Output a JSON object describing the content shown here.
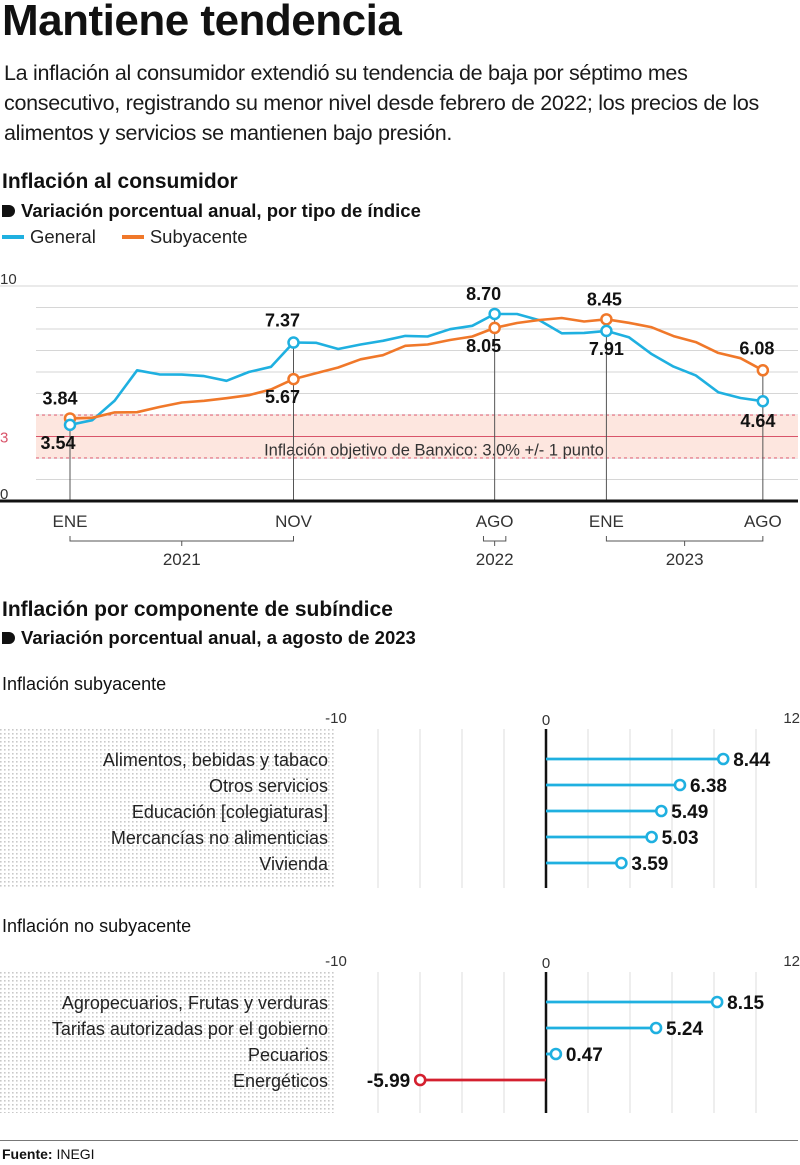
{
  "header": {
    "title": "Mantiene tendencia",
    "intro": "La inflación al consumidor extendió su tendencia de baja por séptimo mes consecutivo, registrando su menor nivel desde febrero de 2022; los precios de los alimentos y servicios se mantienen bajo presión."
  },
  "section1": {
    "title": "Inflación al consumidor",
    "subtitle": "Variación porcentual anual, por tipo de índice"
  },
  "section2": {
    "title": "Inflación por componente de subíndice",
    "subtitle": "Variación porcentual anual, a agosto de 2023"
  },
  "colors": {
    "general": "#1fb0e0",
    "subyacente": "#f0782a",
    "negative": "#d4202f",
    "band": "#fde6df",
    "band_line": "#d9546a"
  },
  "footer": {
    "source_label": "Fuente:",
    "source_value": "INEGI"
  },
  "chart_data": [
    {
      "type": "line",
      "title": "Inflación al consumidor",
      "subtitle": "Variación porcentual anual, por tipo de índice",
      "xlabel": "",
      "ylabel": "",
      "ylim": [
        0,
        10
      ],
      "yticks": [
        "0",
        "3",
        "10"
      ],
      "grid": true,
      "legend": "top-left",
      "x": [
        "ENE 2021",
        "FEB 2021",
        "MAR 2021",
        "ABR 2021",
        "MAY 2021",
        "JUN 2021",
        "JUL 2021",
        "AGO 2021",
        "SEP 2021",
        "OCT 2021",
        "NOV 2021",
        "DIC 2021",
        "ENE 2022",
        "FEB 2022",
        "MAR 2022",
        "ABR 2022",
        "MAY 2022",
        "JUN 2022",
        "JUL 2022",
        "AGO 2022",
        "SEP 2022",
        "OCT 2022",
        "NOV 2022",
        "DIC 2022",
        "ENE 2023",
        "FEB 2023",
        "MAR 2023",
        "ABR 2023",
        "MAY 2023",
        "JUN 2023",
        "JUL 2023",
        "AGO 2023"
      ],
      "xtick_labels": [
        {
          "index": 0,
          "label": "ENE"
        },
        {
          "index": 10,
          "label": "NOV"
        },
        {
          "index": 19,
          "label": "AGO"
        },
        {
          "index": 24,
          "label": "ENE"
        },
        {
          "index": 31,
          "label": "AGO"
        }
      ],
      "year_brackets": [
        {
          "from": 0,
          "to": 10,
          "label": "2021"
        },
        {
          "from": 18.5,
          "to": 19.5,
          "label": "2022"
        },
        {
          "from": 24,
          "to": 31,
          "label": "2023"
        }
      ],
      "series": [
        {
          "name": "General",
          "values": [
            3.54,
            3.76,
            4.67,
            6.08,
            5.89,
            5.88,
            5.81,
            5.59,
            6.0,
            6.24,
            7.37,
            7.36,
            7.07,
            7.28,
            7.45,
            7.68,
            7.65,
            7.99,
            8.15,
            8.7,
            8.7,
            8.41,
            7.8,
            7.82,
            7.91,
            7.62,
            6.85,
            6.25,
            5.84,
            5.06,
            4.79,
            4.64
          ]
        },
        {
          "name": "Subyacente",
          "values": [
            3.84,
            3.87,
            4.12,
            4.13,
            4.37,
            4.58,
            4.66,
            4.78,
            4.92,
            5.19,
            5.67,
            5.94,
            6.21,
            6.59,
            6.78,
            7.22,
            7.28,
            7.49,
            7.65,
            8.05,
            8.28,
            8.42,
            8.51,
            8.35,
            8.45,
            8.29,
            8.09,
            7.67,
            7.39,
            6.89,
            6.64,
            6.08
          ]
        }
      ],
      "point_labels": [
        {
          "series": "Subyacente",
          "index": 0,
          "label": "3.84"
        },
        {
          "series": "General",
          "index": 0,
          "label": "3.54"
        },
        {
          "series": "General",
          "index": 10,
          "label": "7.37"
        },
        {
          "series": "Subyacente",
          "index": 10,
          "label": "5.67"
        },
        {
          "series": "General",
          "index": 19,
          "label": "8.70"
        },
        {
          "series": "Subyacente",
          "index": 19,
          "label": "8.05"
        },
        {
          "series": "Subyacente",
          "index": 24,
          "label": "8.45"
        },
        {
          "series": "General",
          "index": 24,
          "label": "7.91"
        },
        {
          "series": "Subyacente",
          "index": 31,
          "label": "6.08"
        },
        {
          "series": "General",
          "index": 31,
          "label": "4.64"
        }
      ],
      "annotations": [
        {
          "type": "band",
          "from": 2,
          "to": 4,
          "center": 3,
          "label": "Inflación objetivo de Banxico: 3.0% +/- 1 punto"
        }
      ]
    },
    {
      "type": "bar",
      "orientation": "horizontal-lollipop",
      "title": "Inflación subyacente",
      "xlim": [
        -10,
        12
      ],
      "xticks": [
        "-10",
        "0",
        "12"
      ],
      "grid": true,
      "categories": [
        "Alimentos, bebidas y tabaco",
        "Otros servicios",
        "Educación [colegiaturas]",
        "Mercancías no alimenticias",
        "Vivienda"
      ],
      "values": [
        8.44,
        6.38,
        5.49,
        5.03,
        3.59
      ],
      "labels": [
        "8.44",
        "6.38",
        "5.49",
        "5.03",
        "3.59"
      ]
    },
    {
      "type": "bar",
      "orientation": "horizontal-lollipop",
      "title": "Inflación no subyacente",
      "xlim": [
        -10,
        12
      ],
      "xticks": [
        "-10",
        "0",
        "12"
      ],
      "grid": true,
      "categories": [
        "Agropecuarios, Frutas y verduras",
        "Tarifas autorizadas por el gobierno",
        "Pecuarios",
        "Energéticos"
      ],
      "values": [
        8.15,
        5.24,
        0.47,
        -5.99
      ],
      "labels": [
        "8.15",
        "5.24",
        "0.47",
        "-5.99"
      ]
    }
  ]
}
